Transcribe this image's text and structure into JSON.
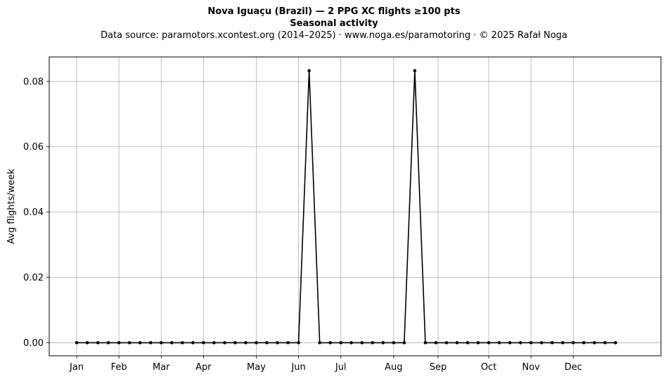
{
  "chart_data": {
    "type": "line",
    "title": "Nova Iguaçu (Brazil)  —  2 PPG XC flights ≥100 pts",
    "title2": "Seasonal activity",
    "subtitle": "Data source: paramotors.xcontest.org (2014–2025)  ·  www.noga.es/paramotoring  ·  © 2025 Rafał Noga",
    "xlabel": "",
    "ylabel": "Avg flights/week",
    "ylim": [
      -0.004,
      0.0875
    ],
    "xlim": [
      -2.6,
      55.3
    ],
    "grid": true,
    "x_ticks": [
      {
        "label": "Jan",
        "x": 0
      },
      {
        "label": "Feb",
        "x": 4
      },
      {
        "label": "Mar",
        "x": 8
      },
      {
        "label": "Apr",
        "x": 12
      },
      {
        "label": "May",
        "x": 17
      },
      {
        "label": "Jun",
        "x": 21
      },
      {
        "label": "Jul",
        "x": 25
      },
      {
        "label": "Aug",
        "x": 30
      },
      {
        "label": "Sep",
        "x": 34.2
      },
      {
        "label": "Oct",
        "x": 39
      },
      {
        "label": "Nov",
        "x": 43
      },
      {
        "label": "Dec",
        "x": 47
      }
    ],
    "y_ticks": [
      {
        "label": "0.00",
        "value": 0
      },
      {
        "label": "0.02",
        "value": 0.02
      },
      {
        "label": "0.04",
        "value": 0.04
      },
      {
        "label": "0.06",
        "value": 0.06
      },
      {
        "label": "0.08",
        "value": 0.08
      }
    ],
    "series": [
      {
        "color": "#000000",
        "x": [
          0,
          1,
          2,
          3,
          4,
          5,
          6,
          7,
          8,
          9,
          10,
          11,
          12,
          13,
          14,
          15,
          16,
          17,
          18,
          19,
          20,
          21,
          22,
          23,
          24,
          25,
          26,
          27,
          28,
          29,
          30,
          31,
          32,
          33,
          34,
          35,
          36,
          37,
          38,
          39,
          40,
          41,
          42,
          43,
          44,
          45,
          46,
          47,
          48,
          49,
          50,
          51
        ],
        "values": [
          0,
          0,
          0,
          0,
          0,
          0,
          0,
          0,
          0,
          0,
          0,
          0,
          0,
          0,
          0,
          0,
          0,
          0,
          0,
          0,
          0,
          0,
          0.0833,
          0,
          0,
          0,
          0,
          0,
          0,
          0,
          0,
          0,
          0.0833,
          0,
          0,
          0,
          0,
          0,
          0,
          0,
          0,
          0,
          0,
          0,
          0,
          0,
          0,
          0,
          0,
          0,
          0,
          0
        ]
      }
    ]
  }
}
